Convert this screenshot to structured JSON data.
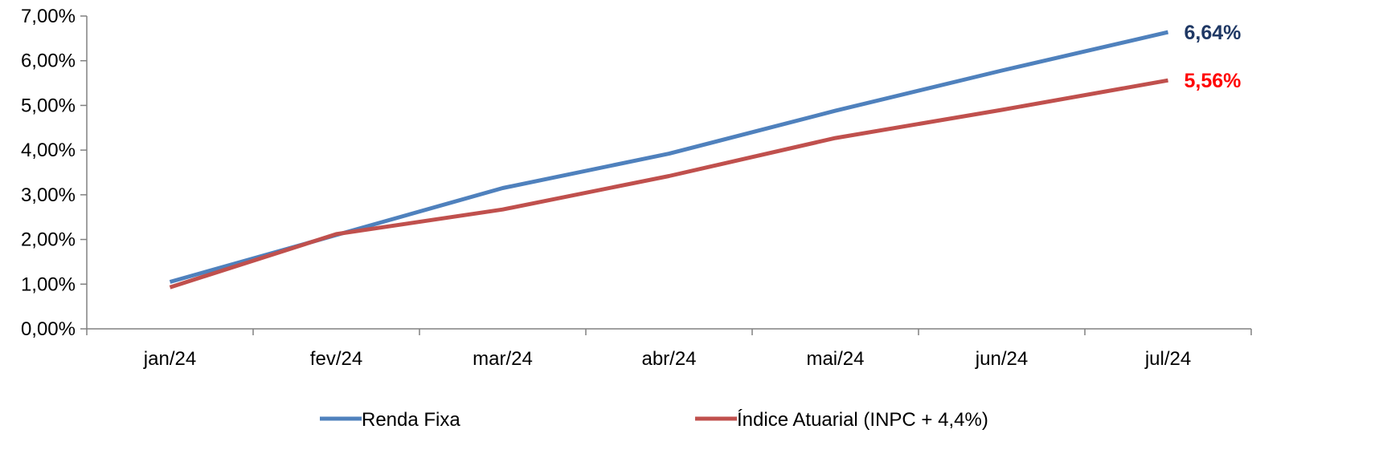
{
  "chart_data": {
    "type": "line",
    "categories": [
      "jan/24",
      "fev/24",
      "mar/24",
      "abr/24",
      "mai/24",
      "jun/24",
      "jul/24"
    ],
    "series": [
      {
        "name": "Renda Fixa",
        "values": [
          1.05,
          2.1,
          3.15,
          3.92,
          4.88,
          5.78,
          6.64
        ],
        "color": "#4F81BD",
        "end_label": "6,64%",
        "end_label_color": "#1F3864"
      },
      {
        "name": "Índice Atuarial (INPC + 4,4%)",
        "values": [
          0.93,
          2.12,
          2.67,
          3.42,
          4.27,
          4.9,
          5.56
        ],
        "color": "#C0504D",
        "end_label": "5,56%",
        "end_label_color": "#FF0000"
      }
    ],
    "y_ticks": [
      "0,00%",
      "1,00%",
      "2,00%",
      "3,00%",
      "4,00%",
      "5,00%",
      "6,00%",
      "7,00%"
    ],
    "ylim": [
      0,
      7
    ],
    "grid": false,
    "legend_position": "bottom",
    "title": "",
    "xlabel": "",
    "ylabel": ""
  }
}
